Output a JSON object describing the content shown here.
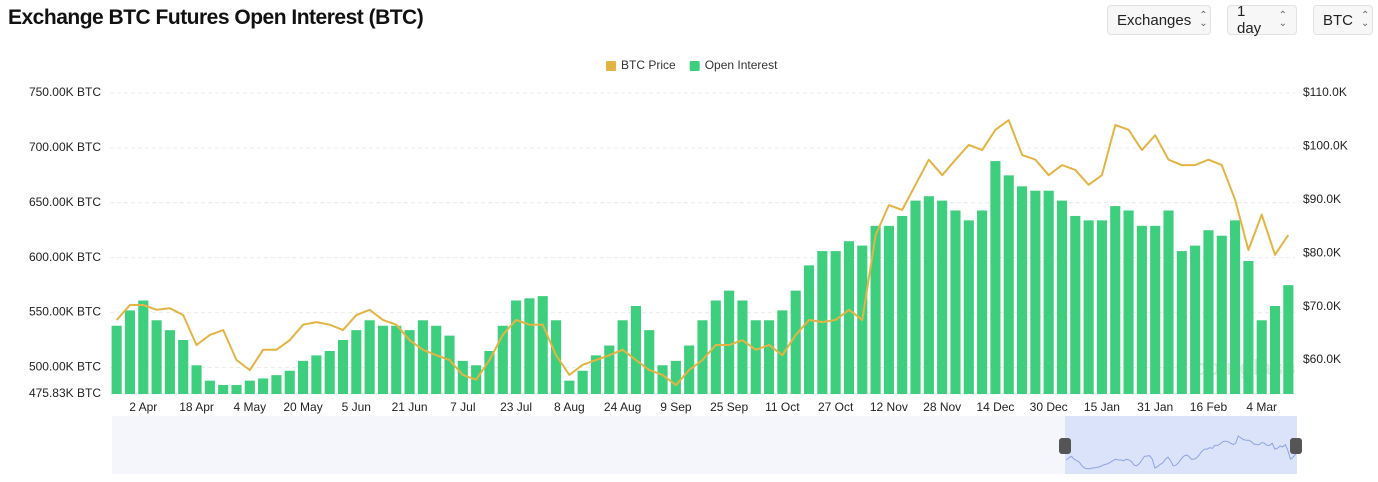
{
  "header": {
    "title": "Exchange BTC Futures Open Interest (BTC)",
    "controls": [
      "Exchanges",
      "1 day",
      "BTC"
    ]
  },
  "watermark": "coinglass",
  "chart_data": {
    "type": "bar",
    "categories": [
      null,
      null,
      "2 Apr",
      null,
      null,
      null,
      "18 Apr",
      null,
      null,
      null,
      "4 May",
      null,
      null,
      null,
      "20 May",
      null,
      null,
      null,
      "5 Jun",
      null,
      null,
      null,
      "21 Jun",
      null,
      null,
      null,
      "7 Jul",
      null,
      null,
      null,
      "23 Jul",
      null,
      null,
      null,
      "8 Aug",
      null,
      null,
      null,
      "24 Aug",
      null,
      null,
      null,
      "9 Sep",
      null,
      null,
      null,
      "25 Sep",
      null,
      null,
      null,
      "11 Oct",
      null,
      null,
      null,
      "27 Oct",
      null,
      null,
      null,
      "12 Nov",
      null,
      null,
      null,
      "28 Nov",
      null,
      null,
      null,
      "14 Dec",
      null,
      null,
      null,
      "30 Dec",
      null,
      null,
      null,
      "15 Jan",
      null,
      null,
      null,
      "31 Jan",
      null,
      null,
      null,
      "16 Feb",
      null,
      null,
      null,
      "4 Mar",
      null,
      null
    ],
    "series": [
      {
        "name": "BTC Price",
        "type": "line",
        "axis": "y2",
        "color": "#e3b443",
        "values": [
          67.5,
          70.3,
          70.3,
          69.4,
          69.7,
          68.4,
          62.8,
          64.7,
          65.6,
          60.0,
          58.1,
          61.9,
          61.9,
          63.7,
          66.6,
          67.1,
          66.6,
          65.6,
          68.4,
          69.4,
          67.5,
          66.6,
          63.7,
          61.9,
          60.9,
          60.0,
          57.2,
          56.3,
          60.0,
          64.7,
          67.5,
          66.6,
          66.6,
          60.9,
          57.2,
          59.1,
          60.0,
          60.9,
          61.9,
          60.0,
          58.1,
          57.2,
          55.3,
          58.1,
          60.0,
          62.8,
          62.8,
          63.7,
          61.9,
          62.8,
          60.9,
          64.7,
          67.5,
          67.1,
          67.5,
          69.4,
          67.5,
          83.4,
          89.0,
          88.1,
          92.8,
          97.5,
          94.6,
          97.5,
          100.3,
          99.3,
          103.1,
          104.9,
          98.4,
          97.5,
          94.6,
          96.5,
          95.6,
          92.8,
          94.6,
          104.0,
          103.1,
          99.3,
          102.1,
          97.5,
          96.5,
          96.5,
          97.5,
          96.5,
          90.0,
          80.6,
          87.2,
          79.7,
          83.4
        ]
      },
      {
        "name": "Open Interest",
        "type": "bar",
        "color": "#3ecf7e",
        "values": [
          538,
          552,
          561,
          543,
          534,
          525,
          502,
          488,
          484,
          484,
          488,
          490,
          493,
          497,
          506,
          511,
          515,
          525,
          534,
          543,
          538,
          538,
          534,
          543,
          538,
          529,
          506,
          502,
          515,
          538,
          561,
          563,
          565,
          543,
          488,
          497,
          511,
          520,
          543,
          556,
          534,
          502,
          506,
          520,
          543,
          561,
          570,
          561,
          543,
          543,
          552,
          570,
          593,
          606,
          606,
          615,
          611,
          629,
          629,
          638,
          652,
          656,
          652,
          643,
          634,
          643,
          688,
          675,
          665,
          661,
          661,
          652,
          638,
          634,
          634,
          647,
          643,
          629,
          629,
          643,
          606,
          611,
          625,
          620,
          634,
          597,
          543,
          556,
          575
        ]
      }
    ],
    "ylim": [
      475.83,
      750
    ],
    "yticks": [
      {
        "value": 475.83,
        "label": "475.83K BTC"
      },
      {
        "value": 500,
        "label": "500.00K BTC"
      },
      {
        "value": 550,
        "label": "550.00K BTC"
      },
      {
        "value": 600,
        "label": "600.00K BTC"
      },
      {
        "value": 650,
        "label": "650.00K BTC"
      },
      {
        "value": 700,
        "label": "700.00K BTC"
      },
      {
        "value": 750,
        "label": "750.00K BTC"
      }
    ],
    "y2lim": [
      53.63,
      110
    ],
    "y2ticks": [
      {
        "value": 60,
        "label": "$60.0K"
      },
      {
        "value": 70,
        "label": "$70.0K"
      },
      {
        "value": 80,
        "label": "$80.0K"
      },
      {
        "value": 90,
        "label": "$90.0K"
      },
      {
        "value": 100,
        "label": "$100.0K"
      },
      {
        "value": 110,
        "label": "$110.0K"
      }
    ],
    "grid": true,
    "legend": "top"
  }
}
